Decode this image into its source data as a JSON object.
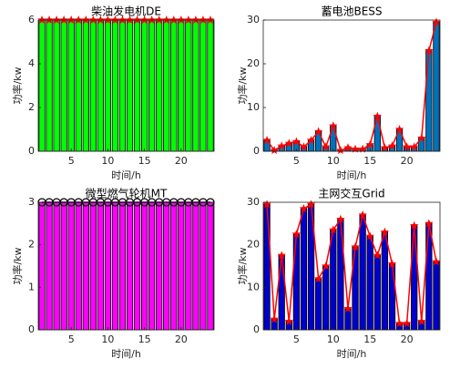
{
  "chart_data": [
    {
      "type": "bar",
      "title": "柴油发电机DE",
      "xlabel": "时间/h",
      "ylabel": "功率/kw",
      "x": [
        1,
        2,
        3,
        4,
        5,
        6,
        7,
        8,
        9,
        10,
        11,
        12,
        13,
        14,
        15,
        16,
        17,
        18,
        19,
        20,
        21,
        22,
        23,
        24
      ],
      "values": [
        6,
        6,
        6,
        6,
        6,
        6,
        6,
        6,
        6,
        6,
        6,
        6,
        6,
        6,
        6,
        6,
        6,
        6,
        6,
        6,
        6,
        6,
        6,
        6
      ],
      "bar_color": "#00ff00",
      "line_color": "#ff0000",
      "marker": "star",
      "xlim": [
        0.5,
        24.5
      ],
      "xticks": [
        5,
        10,
        15,
        20
      ],
      "ylim": [
        0,
        6
      ],
      "yticks": [
        0,
        2,
        4,
        6
      ]
    },
    {
      "type": "bar",
      "title": "蓄电池BESS",
      "xlabel": "时间/h",
      "ylabel": "功率/kw",
      "x": [
        1,
        2,
        3,
        4,
        5,
        6,
        7,
        8,
        9,
        10,
        11,
        12,
        13,
        14,
        15,
        16,
        17,
        18,
        19,
        20,
        21,
        22,
        23,
        24
      ],
      "values": [
        2.5,
        0.2,
        1.2,
        1.8,
        2.2,
        1,
        2.5,
        4.5,
        1,
        5.8,
        0.2,
        0.8,
        0.5,
        0.5,
        1.5,
        8,
        0.8,
        1.2,
        5,
        1,
        1,
        3,
        23,
        29.5
      ],
      "bar_color": "#0072bd",
      "line_color": "#ff0000",
      "marker": "star",
      "xlim": [
        0.5,
        24.5
      ],
      "xticks": [
        5,
        10,
        15,
        20
      ],
      "ylim": [
        0,
        30
      ],
      "yticks": [
        0,
        10,
        20,
        30
      ]
    },
    {
      "type": "bar",
      "title": "微型燃气轮机MT",
      "xlabel": "时间/h",
      "ylabel": "功率/kw",
      "x": [
        1,
        2,
        3,
        4,
        5,
        6,
        7,
        8,
        9,
        10,
        11,
        12,
        13,
        14,
        15,
        16,
        17,
        18,
        19,
        20,
        21,
        22,
        23,
        24
      ],
      "values": [
        3,
        3,
        3,
        3,
        3,
        3,
        3,
        3,
        3,
        3,
        3,
        3,
        3,
        3,
        3,
        3,
        3,
        3,
        3,
        3,
        3,
        3,
        3,
        3
      ],
      "bar_color": "#ff00ff",
      "line_color": "#000000",
      "marker": "circle",
      "xlim": [
        0.5,
        24.5
      ],
      "xticks": [
        5,
        10,
        15,
        20
      ],
      "ylim": [
        0,
        3
      ],
      "yticks": [
        0,
        1,
        2,
        3
      ]
    },
    {
      "type": "bar",
      "title": "主网交互Grid",
      "xlabel": "时间/h",
      "ylabel": "功率/kw",
      "x": [
        1,
        2,
        3,
        4,
        5,
        6,
        7,
        8,
        9,
        10,
        11,
        12,
        13,
        14,
        15,
        16,
        17,
        18,
        19,
        20,
        21,
        22,
        23,
        24
      ],
      "values": [
        29.5,
        2.5,
        17.5,
        2,
        22.5,
        28.5,
        29.5,
        12,
        15,
        23.5,
        26,
        5,
        19.5,
        27,
        22,
        17.5,
        23,
        15.5,
        1.5,
        1.5,
        24.5,
        2,
        25,
        16
      ],
      "bar_color": "#0000cd",
      "line_color": "#ff0000",
      "marker": "star",
      "xlim": [
        0.5,
        24.5
      ],
      "xticks": [
        5,
        10,
        15,
        20
      ],
      "ylim": [
        0,
        30
      ],
      "yticks": [
        0,
        10,
        20,
        30
      ]
    }
  ]
}
